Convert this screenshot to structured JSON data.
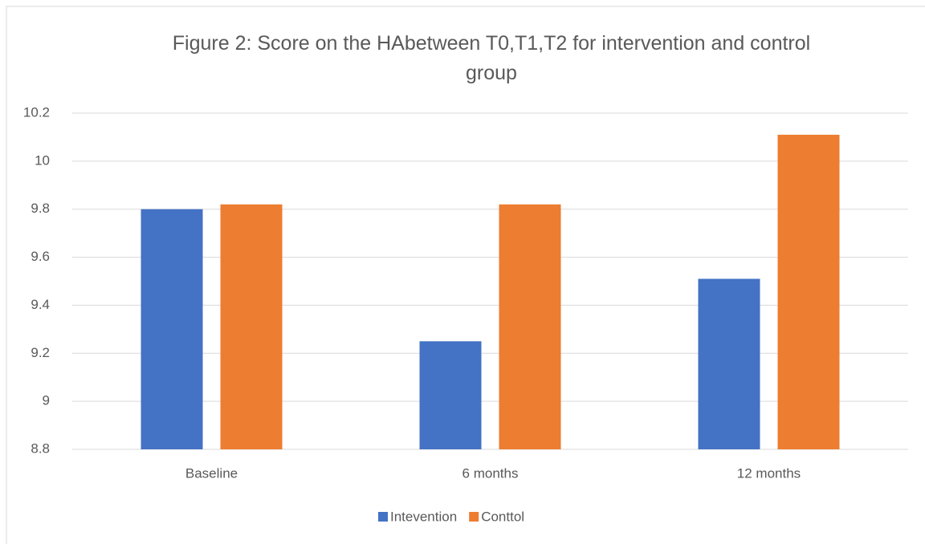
{
  "chart_data": {
    "type": "bar",
    "title": "Figure 2: Score on the HAbetween T0,T1,T2 for intervention and control group",
    "categories": [
      "Baseline",
      "6 months",
      "12 months"
    ],
    "series": [
      {
        "name": "Intevention",
        "color": "#4472c4",
        "values": [
          9.8,
          9.25,
          9.51
        ]
      },
      {
        "name": "Conttol",
        "color": "#ed7d31",
        "values": [
          9.82,
          9.82,
          10.11
        ]
      }
    ],
    "ylim": [
      8.8,
      10.2
    ],
    "yticks": [
      8.8,
      9,
      9.2,
      9.4,
      9.6,
      9.8,
      10,
      10.2
    ],
    "grid": true,
    "legend": "bottom"
  }
}
